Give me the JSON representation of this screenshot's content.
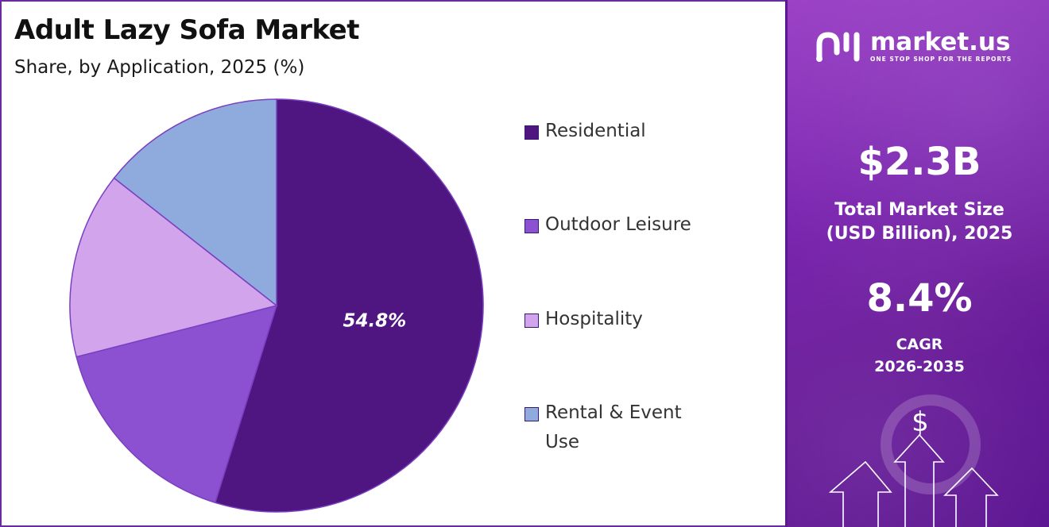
{
  "title": "Adult Lazy Sofa Market",
  "subtitle": "Share, by Application, 2025 (%)",
  "chart_data": {
    "type": "pie",
    "title": "Adult Lazy Sofa Market",
    "subtitle": "Share, by Application, 2025 (%)",
    "categories": [
      "Residential",
      "Outdoor Leisure",
      "Hospitality",
      "Rental & Event Use"
    ],
    "values": [
      54.8,
      16.2,
      14.6,
      14.4
    ],
    "colors": [
      "#4f1580",
      "#8b51d0",
      "#d1a4ec",
      "#8faadc"
    ],
    "data_labels": [
      "54.8%"
    ],
    "legend_position": "right"
  },
  "legend": {
    "items": [
      {
        "label": "Residential",
        "color": "#4f1580"
      },
      {
        "label": "Outdoor Leisure",
        "color": "#8b51d0"
      },
      {
        "label": "Hospitality",
        "color": "#d1a4ec"
      },
      {
        "label": "Rental & Event Use",
        "color": "#8faadc"
      }
    ]
  },
  "sidebar": {
    "logo_name": "market.us",
    "logo_tagline": "ONE STOP SHOP FOR THE REPORTS",
    "market_size_value": "$2.3B",
    "market_size_label_line1": "Total Market Size",
    "market_size_label_line2": "(USD Billion), 2025",
    "cagr_value": "8.4%",
    "cagr_label_line1": "CAGR",
    "cagr_label_line2": "2026-2035",
    "dollar_symbol": "$"
  }
}
